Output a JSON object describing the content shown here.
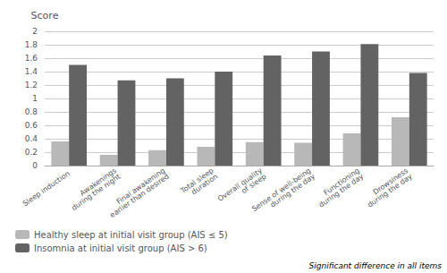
{
  "chart_data": {
    "type": "bar",
    "ylabel": "Score",
    "categories": [
      "Sleep induction",
      "Awakenings\nduring the night",
      "Final awakening\nearlier than desired",
      "Total sleep\nduration",
      "Overall quality\nof sleep",
      "Sense of well-being\nduring the day",
      "Functioning\nduring the day",
      "Drowsiness\nduring the day"
    ],
    "series": [
      {
        "name": "Healthy sleep at initial visit group (AIS ≤ 5)",
        "color": "#b8b8b8",
        "values": [
          0.36,
          0.16,
          0.23,
          0.28,
          0.35,
          0.34,
          0.48,
          0.72
        ]
      },
      {
        "name": "Insomnia at initial visit group (AIS > 6)",
        "color": "#636363",
        "values": [
          1.5,
          1.27,
          1.3,
          1.4,
          1.64,
          1.7,
          1.81,
          1.38
        ]
      }
    ],
    "ylim": [
      0,
      2.0
    ],
    "yticks": [
      0,
      0.2,
      0.4,
      0.6,
      0.8,
      1.0,
      1.2,
      1.4,
      1.6,
      1.8,
      2.0
    ],
    "grid": true,
    "legend": "bottom",
    "annotations": [
      "Significant difference in all items"
    ]
  }
}
